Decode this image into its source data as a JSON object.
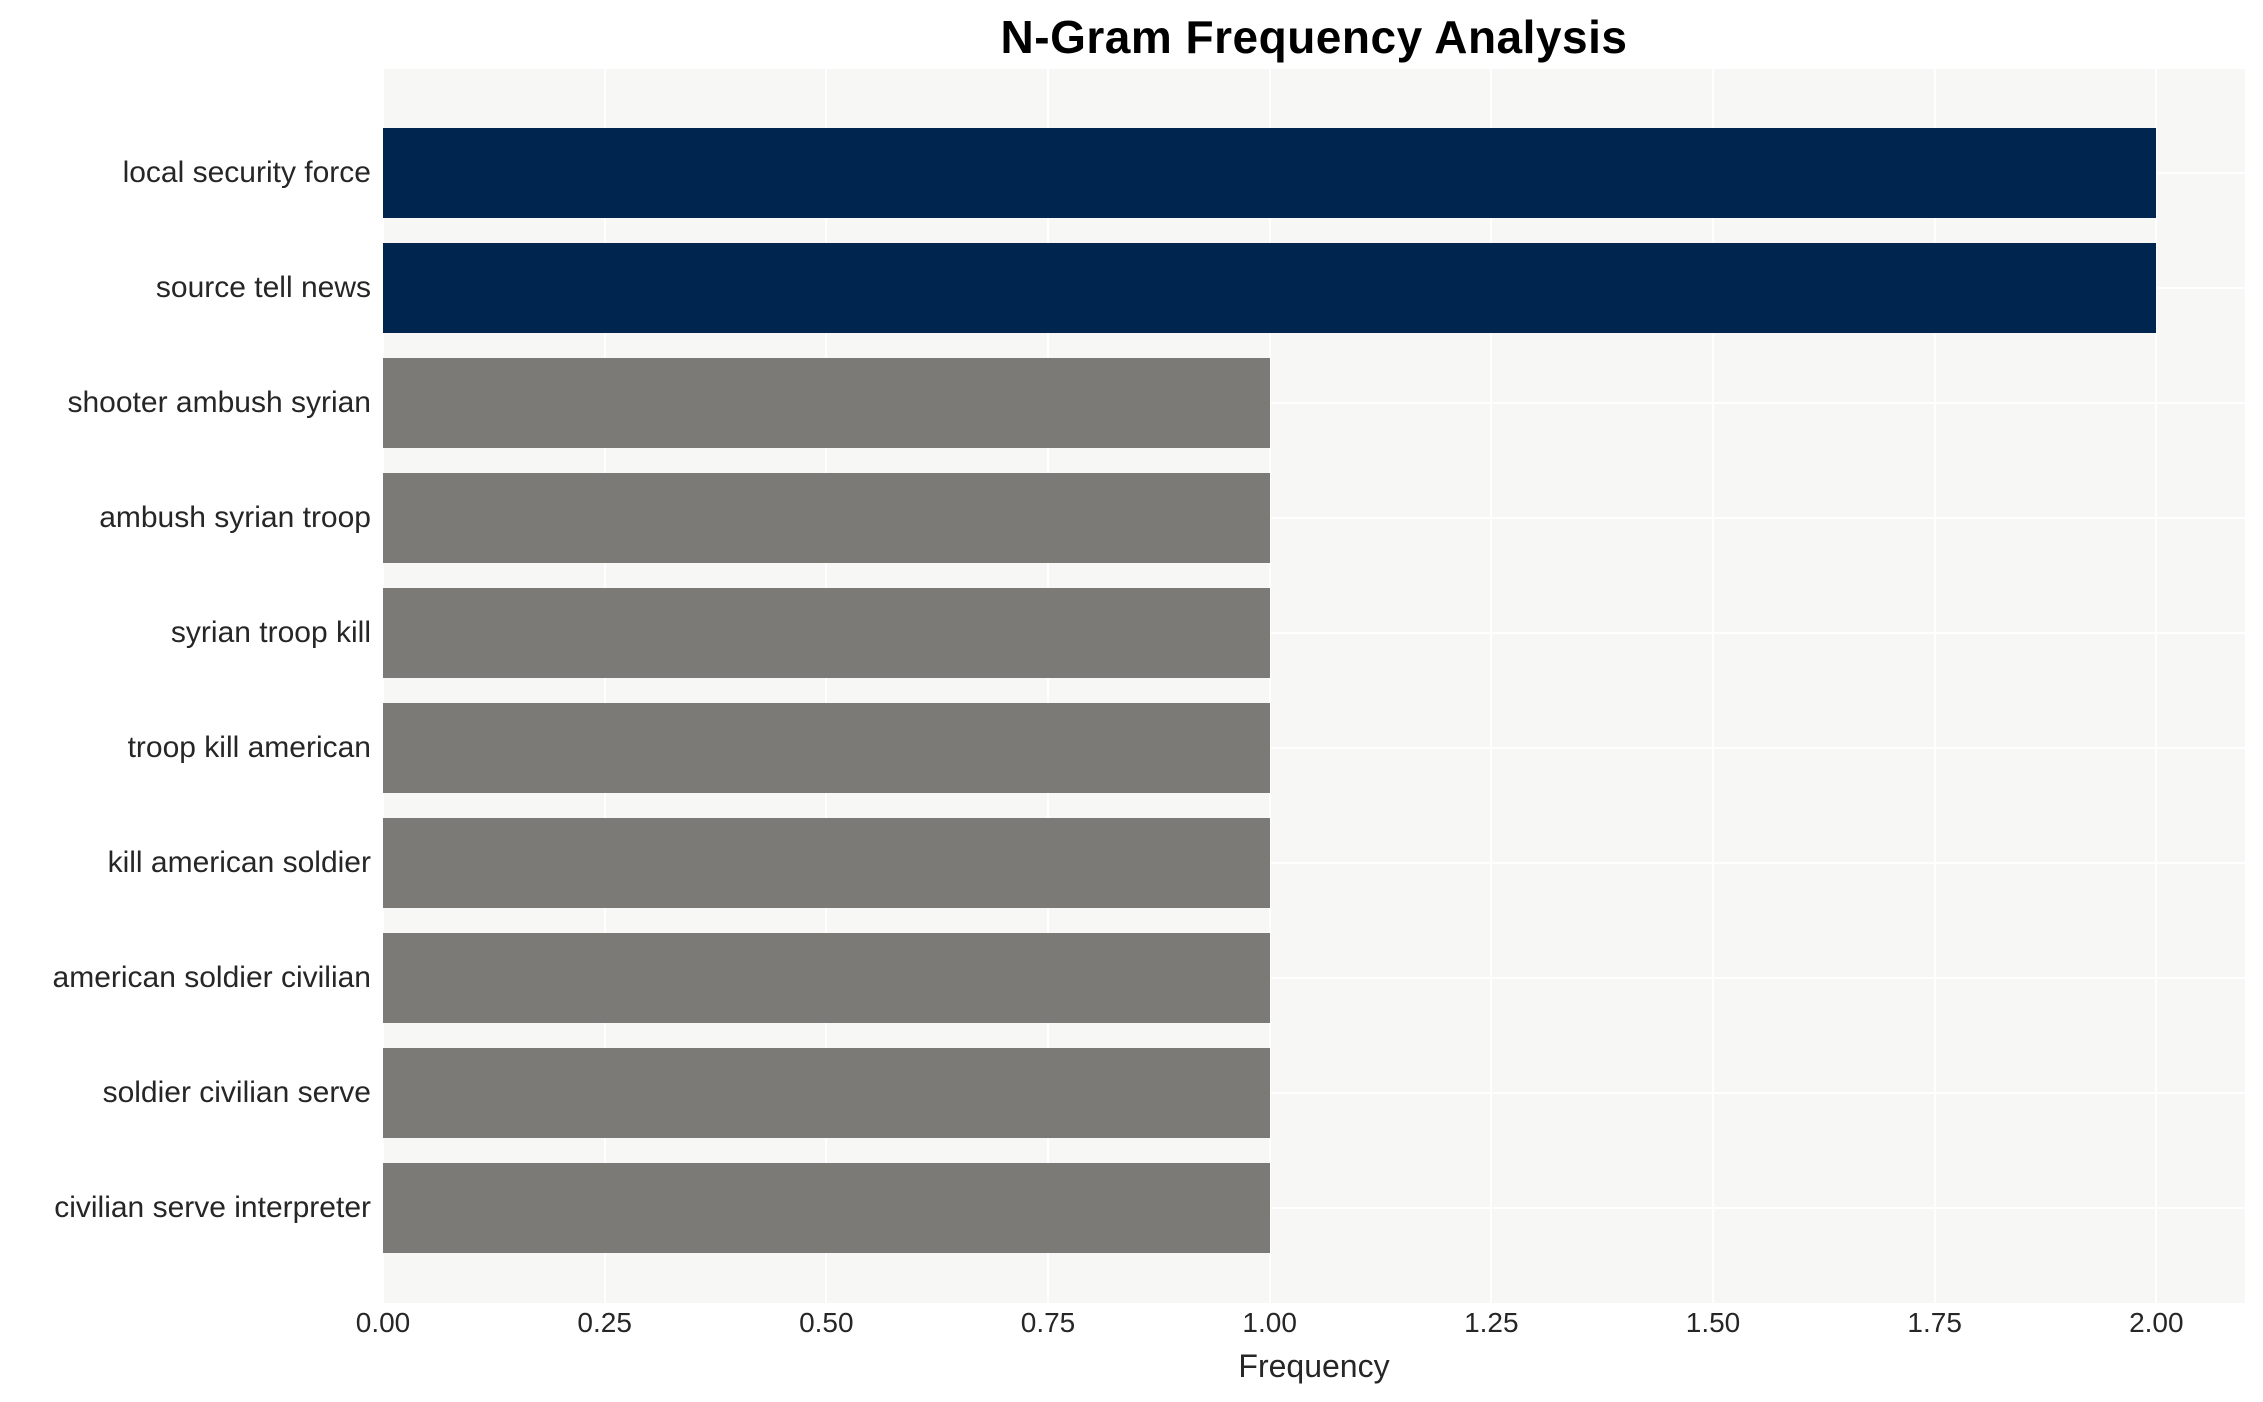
{
  "chart_data": {
    "type": "bar",
    "orientation": "horizontal",
    "title": "N-Gram Frequency Analysis",
    "xlabel": "Frequency",
    "ylabel": "",
    "categories": [
      "local security force",
      "source tell news",
      "shooter ambush syrian",
      "ambush syrian troop",
      "syrian troop kill",
      "troop kill american",
      "kill american soldier",
      "american soldier civilian",
      "soldier civilian serve",
      "civilian serve interpreter"
    ],
    "values": [
      2,
      2,
      1,
      1,
      1,
      1,
      1,
      1,
      1,
      1
    ],
    "bar_colors": [
      "#00254f",
      "#00254f",
      "#7b7a77",
      "#7b7a77",
      "#7b7a77",
      "#7b7a77",
      "#7b7a77",
      "#7b7a77",
      "#7b7a77",
      "#7b7a77"
    ],
    "xlim": [
      0,
      2.1
    ],
    "xticks": [
      "0.00",
      "0.25",
      "0.50",
      "0.75",
      "1.00",
      "1.25",
      "1.50",
      "1.75",
      "2.00"
    ],
    "grid": "on",
    "legend": "none",
    "colors": {
      "highlight": "#00254f",
      "default_bar": "#7b7a77",
      "plot_background": "#f7f7f6",
      "gridline": "#ffffff",
      "text": "#262626",
      "title_text": "#000000",
      "figure_background": "#ffffff"
    }
  }
}
